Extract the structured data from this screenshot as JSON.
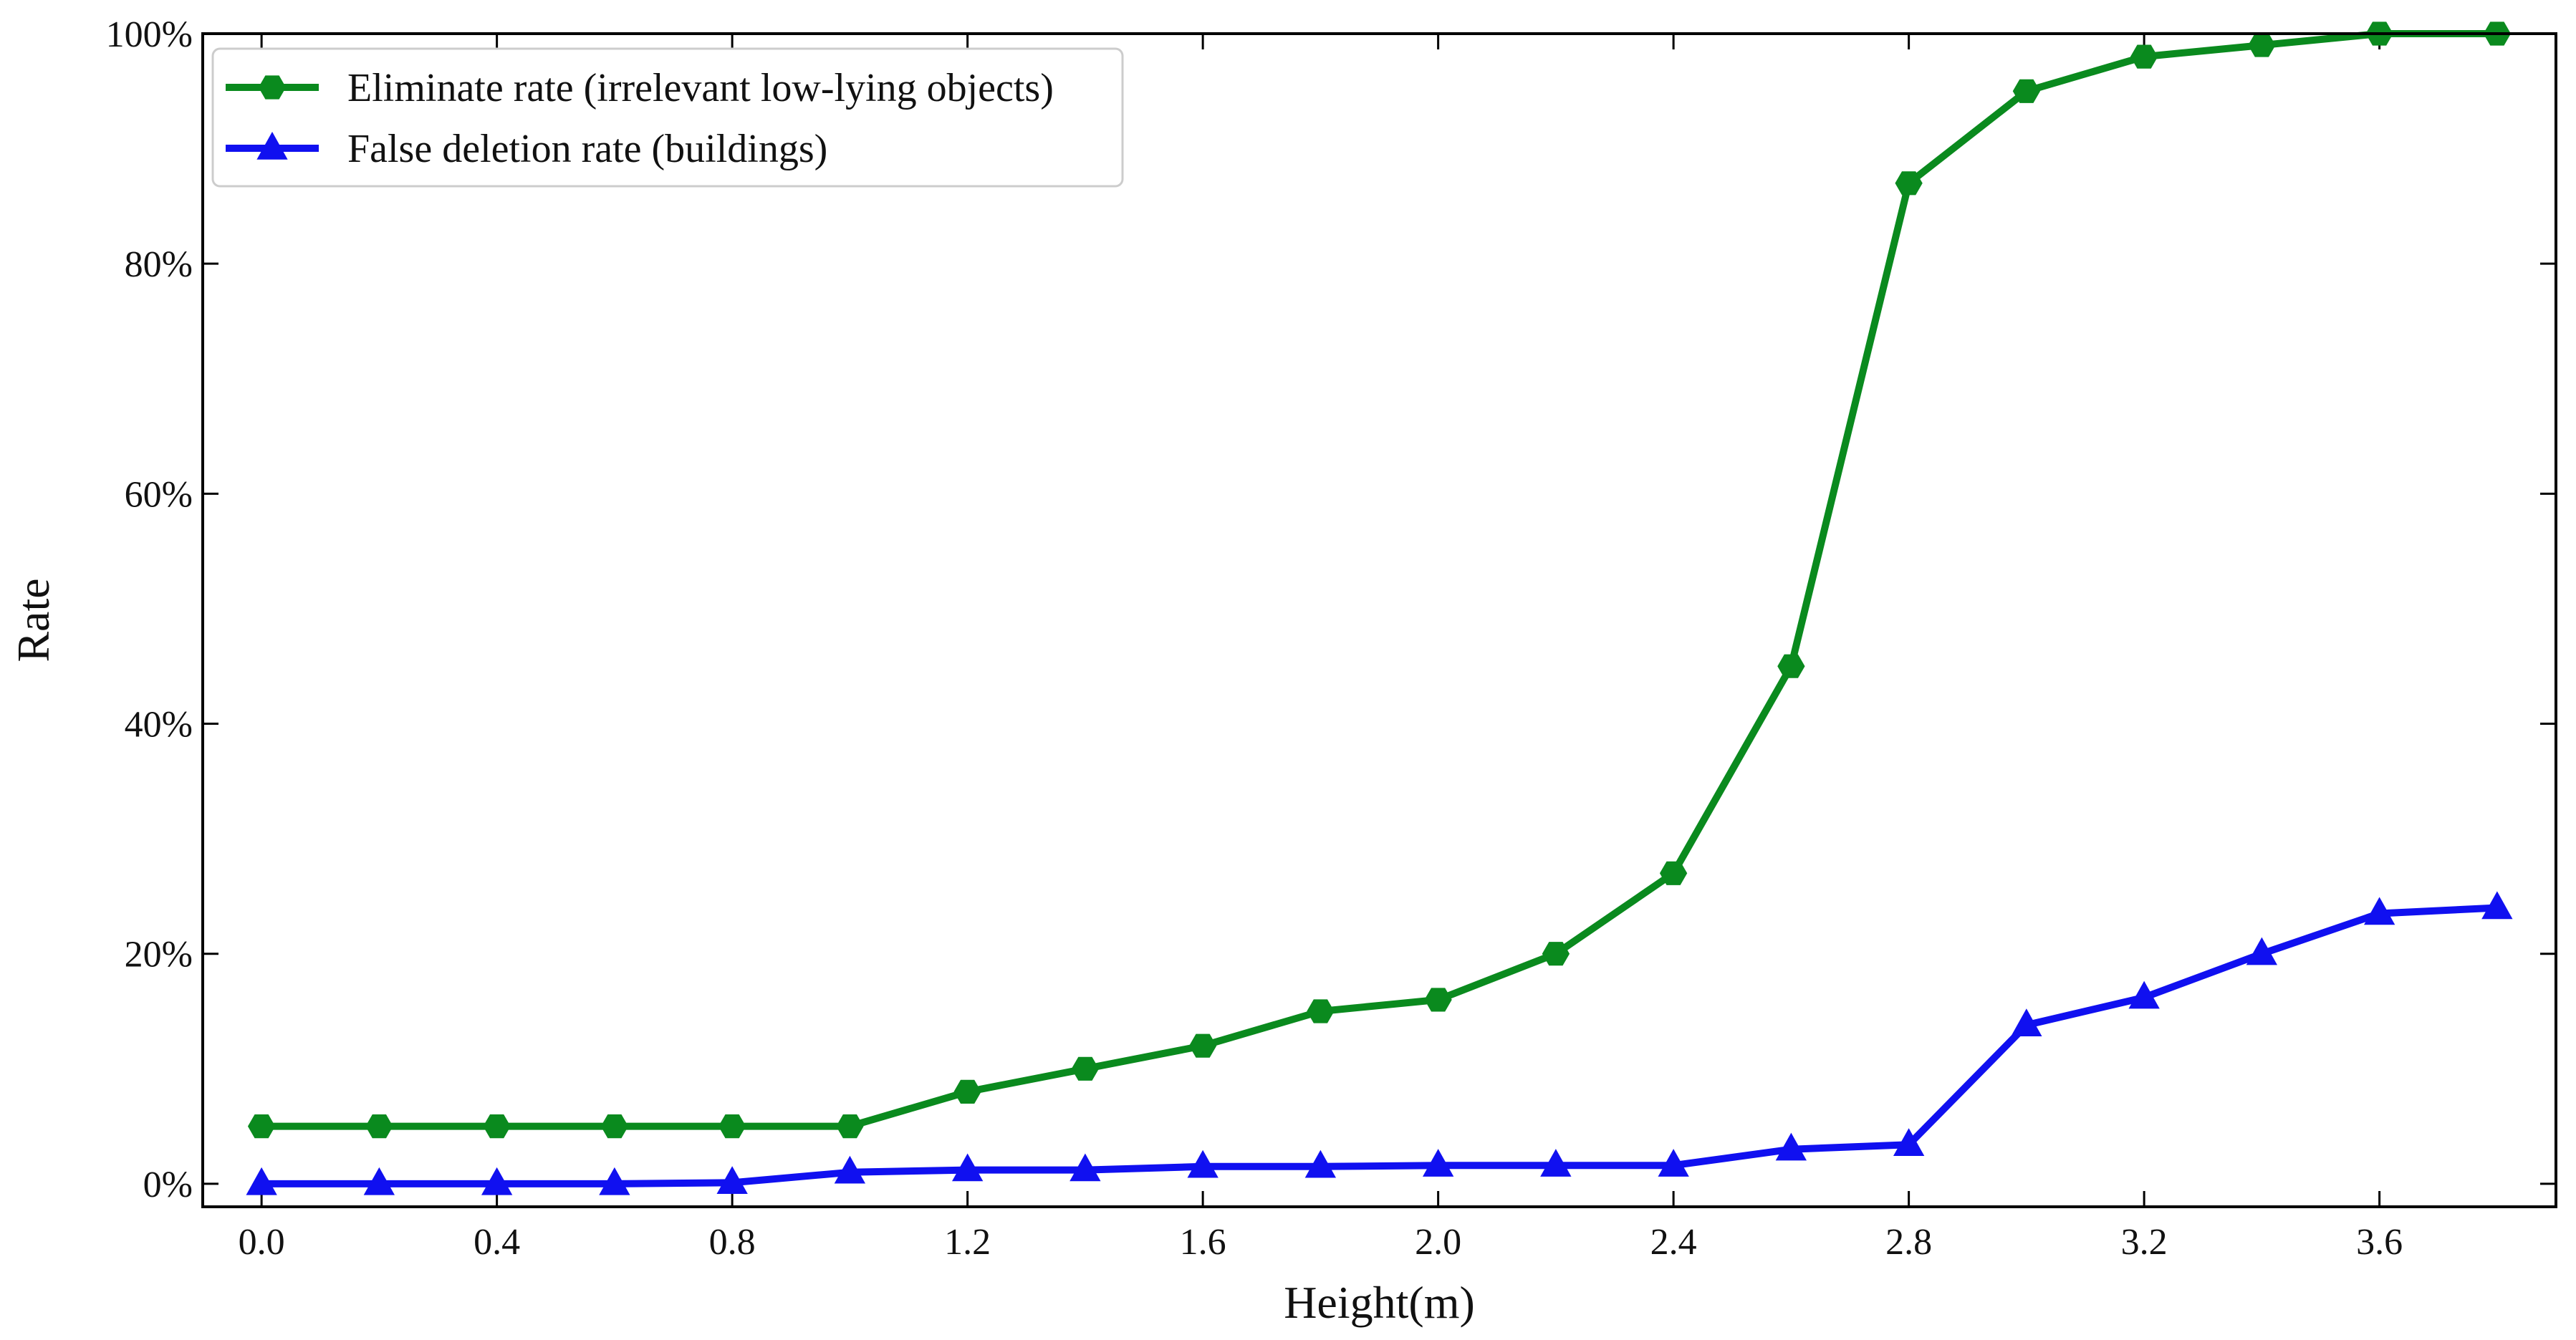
{
  "chart_data": {
    "type": "line",
    "title": "",
    "xlabel": "Height(m)",
    "ylabel": "Rate",
    "xlim": [
      -0.1,
      3.9
    ],
    "ylim": [
      -2,
      100
    ],
    "x": [
      0.0,
      0.2,
      0.4,
      0.6,
      0.8,
      1.0,
      1.2,
      1.4,
      1.6,
      1.8,
      2.0,
      2.2,
      2.4,
      2.6,
      2.8,
      3.0,
      3.2,
      3.4,
      3.6,
      3.8
    ],
    "xticks": [
      0.0,
      0.4,
      0.8,
      1.2,
      1.6,
      2.0,
      2.4,
      2.8,
      3.2,
      3.6
    ],
    "xtick_labels": [
      "0.0",
      "0.4",
      "0.8",
      "1.2",
      "1.6",
      "2.0",
      "2.4",
      "2.8",
      "3.2",
      "3.6"
    ],
    "yticks": [
      0,
      20,
      40,
      60,
      80,
      100
    ],
    "ytick_labels": [
      "0%",
      "20%",
      "40%",
      "60%",
      "80%",
      "100%"
    ],
    "grid": false,
    "legend_position": "top-left",
    "series": [
      {
        "name": "Eliminate rate (irrelevant low-lying objects)",
        "color": "#0a8a1e",
        "marker": "hexagon",
        "values": [
          5,
          5,
          5,
          5,
          5,
          5,
          8,
          10,
          12,
          15,
          16,
          20,
          27,
          45,
          87,
          95,
          98,
          99,
          100,
          100
        ]
      },
      {
        "name": "False deletion rate (buildings)",
        "color": "#1010f0",
        "marker": "triangle",
        "values": [
          0,
          0,
          0,
          0,
          0.1,
          1.0,
          1.2,
          1.2,
          1.5,
          1.5,
          1.6,
          1.6,
          1.6,
          3.0,
          3.4,
          13.8,
          16.2,
          20.0,
          23.5,
          24.0
        ]
      }
    ]
  }
}
